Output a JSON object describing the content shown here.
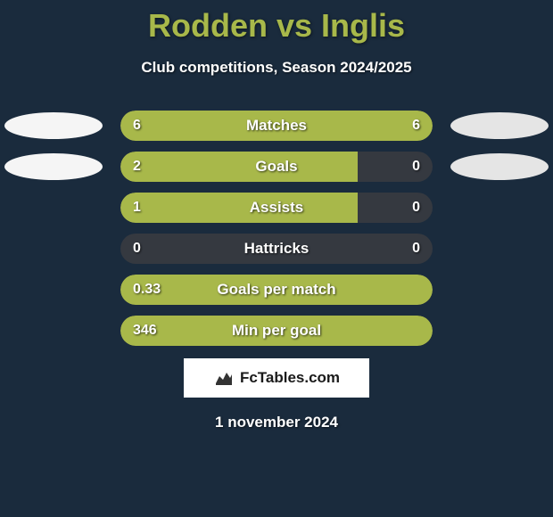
{
  "title": "Rodden vs Inglis",
  "subtitle": "Club competitions, Season 2024/2025",
  "colors": {
    "background": "#1a2b3d",
    "accent": "#a8b84a",
    "bar_bg": "#353940",
    "text": "#ffffff",
    "ellipse_left": "#f5f5f5",
    "ellipse_right": "#e5e5e5",
    "branding_bg": "#ffffff",
    "branding_text": "#1a1a1a"
  },
  "rows": [
    {
      "label": "Matches",
      "left_val": "6",
      "right_val": "6",
      "left_fill_pct": 50,
      "right_fill_pct": 50,
      "full": true,
      "show_ellipses": true
    },
    {
      "label": "Goals",
      "left_val": "2",
      "right_val": "0",
      "left_fill_pct": 76,
      "right_fill_pct": 0,
      "full": false,
      "show_ellipses": true
    },
    {
      "label": "Assists",
      "left_val": "1",
      "right_val": "0",
      "left_fill_pct": 76,
      "right_fill_pct": 0,
      "full": false,
      "show_ellipses": false
    },
    {
      "label": "Hattricks",
      "left_val": "0",
      "right_val": "0",
      "left_fill_pct": 0,
      "right_fill_pct": 0,
      "full": false,
      "show_ellipses": false
    },
    {
      "label": "Goals per match",
      "left_val": "0.33",
      "right_val": "",
      "left_fill_pct": 100,
      "right_fill_pct": 0,
      "full": true,
      "show_ellipses": false
    },
    {
      "label": "Min per goal",
      "left_val": "346",
      "right_val": "",
      "left_fill_pct": 100,
      "right_fill_pct": 0,
      "full": true,
      "show_ellipses": false
    }
  ],
  "branding": {
    "text": "FcTables.com"
  },
  "date": "1 november 2024"
}
